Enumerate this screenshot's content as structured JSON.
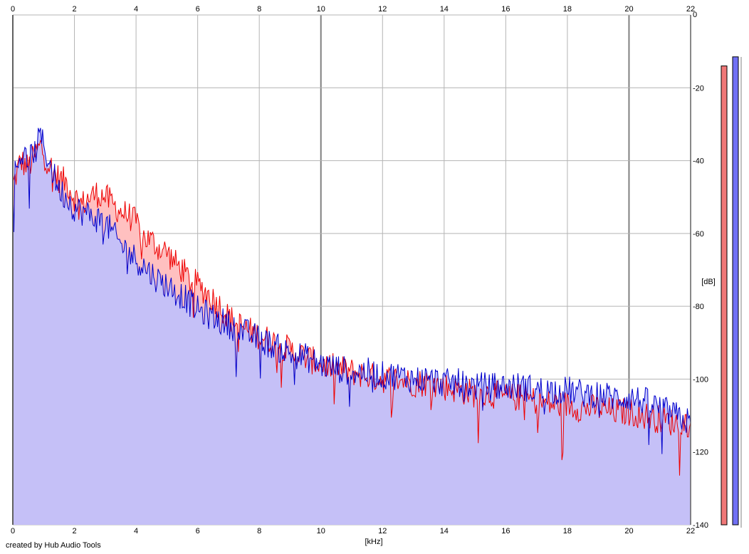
{
  "credit": "created by Hub Audio Tools",
  "chart_data": {
    "type": "area",
    "xlabel": "[kHz]",
    "ylabel": "[dB]",
    "xlim": [
      0,
      22
    ],
    "ylim": [
      -140,
      0
    ],
    "x_ticks": [
      0,
      2,
      4,
      6,
      8,
      10,
      12,
      14,
      16,
      18,
      20,
      22
    ],
    "y_ticks": [
      0,
      -20,
      -40,
      -60,
      -80,
      -100,
      -120,
      -140
    ],
    "grid": true,
    "colors": {
      "red_line": "#ee0000",
      "red_fill": "#ffc0c0",
      "blue_line": "#0000cc",
      "blue_fill": "#c0c0fc",
      "meter_red": "#f07878",
      "meter_blue": "#7070f4"
    },
    "series": [
      {
        "color": "red",
        "x": [
          0,
          0.25,
          0.5,
          0.75,
          0.9,
          1.0,
          1.25,
          1.5,
          1.75,
          2.0,
          2.25,
          2.5,
          2.75,
          3.0,
          3.25,
          3.5,
          3.75,
          4.0,
          4.25,
          4.5,
          4.75,
          5.0,
          5.25,
          5.5,
          5.75,
          6.0,
          6.25,
          6.5,
          6.75,
          7.0,
          7.5,
          8.0,
          8.5,
          9.0,
          9.5,
          10.0,
          10.5,
          11.0,
          11.5,
          12.0,
          12.5,
          13.0,
          13.5,
          14.0,
          14.5,
          15.0,
          15.5,
          16.0,
          16.5,
          17.0,
          17.5,
          18.0,
          18.5,
          19.0,
          19.5,
          20.0,
          20.5,
          21.0,
          21.5,
          22.0
        ],
        "y": [
          -47,
          -40,
          -42,
          -38,
          -36,
          -38,
          -42,
          -45,
          -46,
          -50,
          -52,
          -50,
          -49,
          -50,
          -52,
          -54,
          -55,
          -57,
          -61,
          -62,
          -64,
          -65,
          -68,
          -70,
          -73,
          -74,
          -76,
          -78,
          -80,
          -83,
          -86,
          -88,
          -90,
          -92,
          -94,
          -96,
          -97,
          -98,
          -99,
          -100,
          -100,
          -101,
          -101,
          -102,
          -103,
          -104,
          -104,
          -105,
          -105,
          -106,
          -107,
          -107,
          -108,
          -108,
          -109,
          -109,
          -110,
          -111,
          -112,
          -112
        ]
      },
      {
        "color": "blue",
        "x": [
          0,
          0.25,
          0.5,
          0.75,
          0.9,
          1.0,
          1.25,
          1.5,
          1.75,
          2.0,
          2.25,
          2.5,
          2.75,
          3.0,
          3.25,
          3.5,
          3.75,
          4.0,
          4.25,
          4.5,
          4.75,
          5.0,
          5.25,
          5.5,
          5.75,
          6.0,
          6.25,
          6.5,
          6.75,
          7.0,
          7.5,
          8.0,
          8.5,
          9.0,
          9.5,
          10.0,
          10.5,
          11.0,
          11.5,
          12.0,
          12.5,
          13.0,
          13.5,
          14.0,
          14.5,
          15.0,
          15.5,
          16.0,
          16.5,
          17.0,
          17.5,
          18.0,
          18.5,
          19.0,
          19.5,
          20.0,
          20.5,
          21.0,
          21.5,
          22.0
        ],
        "y": [
          -45,
          -38,
          -40,
          -37,
          -33,
          -36,
          -42,
          -48,
          -50,
          -53,
          -54,
          -55,
          -56,
          -57,
          -60,
          -63,
          -65,
          -67,
          -69,
          -71,
          -73,
          -74,
          -76,
          -77,
          -79,
          -81,
          -82,
          -83,
          -84,
          -85,
          -87,
          -89,
          -91,
          -93,
          -94,
          -96,
          -97,
          -98,
          -98,
          -99,
          -99,
          -100,
          -100,
          -101,
          -101,
          -102,
          -102,
          -102,
          -102,
          -103,
          -103,
          -103,
          -104,
          -104,
          -105,
          -105,
          -106,
          -108,
          -110,
          -112
        ]
      }
    ],
    "meters": [
      {
        "color": "red",
        "top_db": -14
      },
      {
        "color": "blue",
        "top_db": -11.5
      }
    ]
  }
}
